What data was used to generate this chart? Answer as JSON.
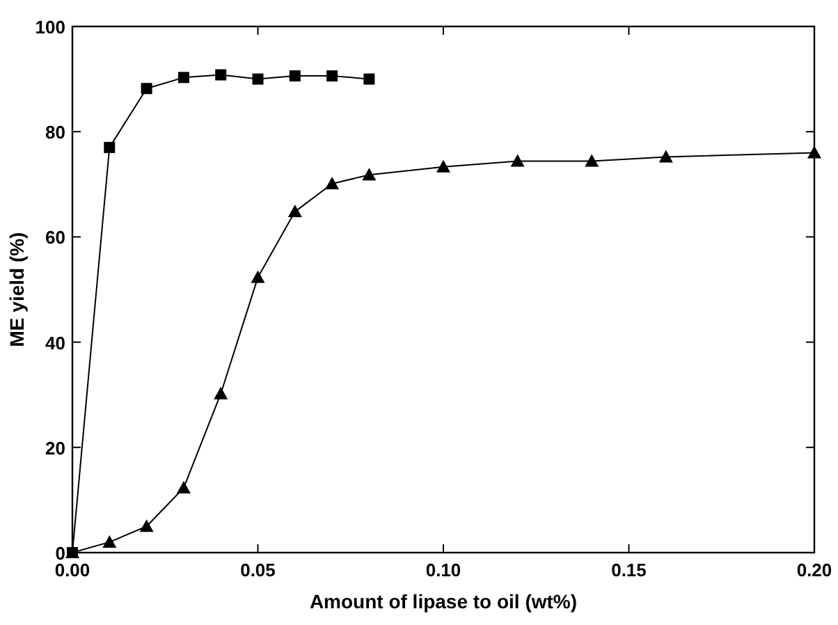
{
  "chart_data": {
    "type": "line",
    "xlabel": "Amount of lipase to oil (wt%)",
    "ylabel": "ME yield (%)",
    "xlim": [
      0,
      0.2
    ],
    "ylim": [
      0,
      100
    ],
    "xticks": [
      {
        "value": 0,
        "label": "0.00"
      },
      {
        "value": 0.05,
        "label": "0.05"
      },
      {
        "value": 0.1,
        "label": "0.10"
      },
      {
        "value": 0.15,
        "label": "0.15"
      },
      {
        "value": 0.2,
        "label": "0.20"
      }
    ],
    "yticks": [
      0,
      20,
      40,
      60,
      80,
      100
    ],
    "grid": false,
    "line_style": "solid",
    "series": [
      {
        "color": "#000000",
        "marker": "square",
        "x": [
          0,
          0.01,
          0.02,
          0.03,
          0.04,
          0.05,
          0.06,
          0.07,
          0.08
        ],
        "values": [
          0,
          77,
          88.2,
          90.3,
          90.8,
          90,
          90.6,
          90.6,
          90
        ]
      },
      {
        "color": "#000000",
        "marker": "triangle",
        "x": [
          0,
          0.01,
          0.02,
          0.03,
          0.04,
          0.05,
          0.06,
          0.07,
          0.08,
          0.1,
          0.12,
          0.14,
          0.16,
          0.2
        ],
        "values": [
          0,
          2,
          5,
          12.3,
          30.2,
          52.3,
          64.8,
          70.1,
          71.8,
          73.3,
          74.4,
          74.4,
          75.2,
          76
        ]
      }
    ]
  }
}
